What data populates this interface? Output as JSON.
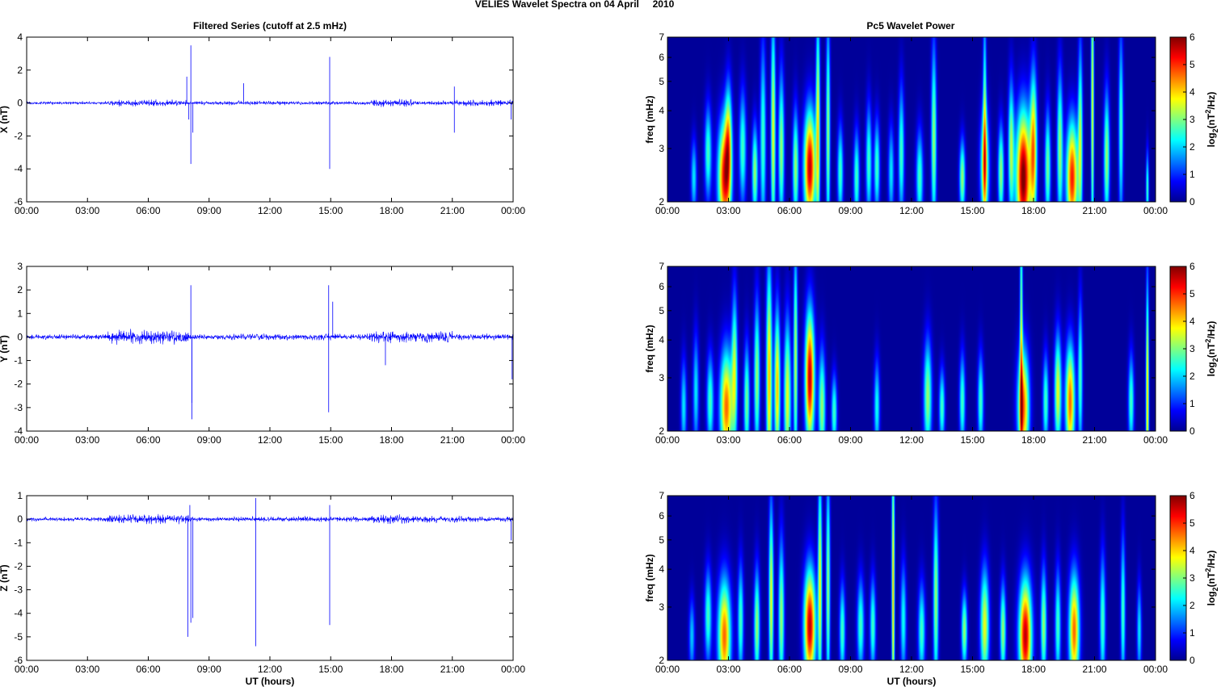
{
  "figure": {
    "title": "VELIES Wavelet Spectra on 04 April     2010",
    "left_title": "Filtered Series (cutoff at 2.5 mHz)",
    "right_title": "Pc5 Wavelet Power",
    "colorbar_label": "log2(nT2/Hz)"
  },
  "chart_data": [
    {
      "type": "line",
      "component": "X",
      "ylabel": "X (nT)",
      "xlabel": "",
      "xlim": [
        0,
        24
      ],
      "ylim": [
        -6,
        4
      ],
      "yticks": [
        -6,
        -4,
        -2,
        0,
        2,
        4
      ],
      "xticks": [
        "00:00",
        "03:00",
        "06:00",
        "09:00",
        "12:00",
        "15:00",
        "18:00",
        "21:00",
        "00:00"
      ],
      "color": "#0000ff",
      "noise_segments": [
        [
          0,
          4,
          0.1
        ],
        [
          4,
          8,
          0.22
        ],
        [
          8,
          10,
          0.12
        ],
        [
          10,
          13,
          0.14
        ],
        [
          13,
          17,
          0.12
        ],
        [
          17,
          19,
          0.25
        ],
        [
          19,
          21,
          0.14
        ],
        [
          21,
          24,
          0.2
        ]
      ],
      "spikes": [
        {
          "t": 7.9,
          "v": 1.6
        },
        {
          "t": 8.0,
          "v": -1.0
        },
        {
          "t": 8.1,
          "v": 3.5
        },
        {
          "t": 8.1,
          "v": -3.7
        },
        {
          "t": 8.2,
          "v": -1.8
        },
        {
          "t": 10.7,
          "v": 1.2
        },
        {
          "t": 14.95,
          "v": 2.8
        },
        {
          "t": 14.95,
          "v": -4.0
        },
        {
          "t": 21.1,
          "v": 1.0
        },
        {
          "t": 21.1,
          "v": -1.8
        },
        {
          "t": 23.9,
          "v": -1.0
        }
      ]
    },
    {
      "type": "line",
      "component": "Y",
      "ylabel": "Y (nT)",
      "xlabel": "",
      "xlim": [
        0,
        24
      ],
      "ylim": [
        -4,
        3
      ],
      "yticks": [
        -4,
        -3,
        -2,
        -1,
        0,
        1,
        2,
        3
      ],
      "xticks": [
        "00:00",
        "03:00",
        "06:00",
        "09:00",
        "12:00",
        "15:00",
        "18:00",
        "21:00",
        "00:00"
      ],
      "color": "#0000ff",
      "noise_segments": [
        [
          0,
          4,
          0.12
        ],
        [
          4,
          8,
          0.35
        ],
        [
          8,
          10,
          0.12
        ],
        [
          10,
          13,
          0.15
        ],
        [
          13,
          17,
          0.15
        ],
        [
          17,
          21,
          0.28
        ],
        [
          21,
          24,
          0.15
        ]
      ],
      "spikes": [
        {
          "t": 8.1,
          "v": 2.2
        },
        {
          "t": 8.15,
          "v": -2.8
        },
        {
          "t": 8.15,
          "v": -3.5
        },
        {
          "t": 14.9,
          "v": 2.2
        },
        {
          "t": 14.9,
          "v": -3.2
        },
        {
          "t": 15.1,
          "v": 1.5
        },
        {
          "t": 17.7,
          "v": -1.2
        },
        {
          "t": 23.95,
          "v": -1.8
        }
      ]
    },
    {
      "type": "line",
      "component": "Z",
      "ylabel": "Z (nT)",
      "xlabel": "UT (hours)",
      "xlim": [
        0,
        24
      ],
      "ylim": [
        -6,
        1
      ],
      "yticks": [
        -6,
        -5,
        -4,
        -3,
        -2,
        -1,
        0,
        1
      ],
      "xticks": [
        "00:00",
        "03:00",
        "06:00",
        "09:00",
        "12:00",
        "15:00",
        "18:00",
        "21:00",
        "00:00"
      ],
      "color": "#0000ff",
      "noise_segments": [
        [
          0,
          4,
          0.1
        ],
        [
          4,
          8,
          0.22
        ],
        [
          8,
          10,
          0.1
        ],
        [
          10,
          13,
          0.12
        ],
        [
          13,
          17,
          0.12
        ],
        [
          17,
          19,
          0.22
        ],
        [
          19,
          22,
          0.16
        ],
        [
          22,
          24,
          0.12
        ]
      ],
      "spikes": [
        {
          "t": 7.95,
          "v": -5.0
        },
        {
          "t": 8.1,
          "v": -4.4
        },
        {
          "t": 8.2,
          "v": -4.2
        },
        {
          "t": 8.05,
          "v": 0.6
        },
        {
          "t": 11.3,
          "v": -5.4
        },
        {
          "t": 11.3,
          "v": 0.9
        },
        {
          "t": 14.95,
          "v": -4.5
        },
        {
          "t": 14.95,
          "v": 0.6
        },
        {
          "t": 23.9,
          "v": -0.9
        }
      ]
    },
    {
      "type": "heatmap",
      "title": "Pc5 Wavelet Power",
      "component": "X",
      "ylabel": "freq (mHz)",
      "xlabel": "",
      "xlim": [
        0,
        24
      ],
      "ylim": [
        2,
        7
      ],
      "yscale": "log",
      "yticks": [
        2,
        3,
        4,
        5,
        6,
        7
      ],
      "xticks": [
        "00:00",
        "03:00",
        "06:00",
        "09:00",
        "12:00",
        "15:00",
        "18:00",
        "21:00",
        "00:00"
      ],
      "colorbar": {
        "label": "log2(nT2/Hz)",
        "range": [
          0,
          6
        ],
        "ticks": [
          0,
          1,
          2,
          3,
          4,
          5,
          6
        ],
        "colormap": "jet"
      },
      "blobs": [
        [
          1.3,
          2.4,
          0.1,
          0.2,
          2.0
        ],
        [
          2.0,
          2.9,
          0.12,
          0.25,
          2.5
        ],
        [
          2.8,
          2.4,
          0.22,
          0.3,
          5.0
        ],
        [
          3.0,
          3.2,
          0.12,
          0.3,
          3.0
        ],
        [
          3.7,
          3.0,
          0.12,
          0.3,
          2.5
        ],
        [
          4.3,
          2.5,
          0.1,
          0.25,
          3.0
        ],
        [
          4.7,
          3.2,
          0.1,
          0.5,
          2.5
        ],
        [
          5.2,
          3.4,
          0.08,
          0.6,
          3.5
        ],
        [
          5.6,
          3.0,
          0.1,
          0.4,
          3.0
        ],
        [
          6.3,
          2.6,
          0.1,
          0.3,
          3.0
        ],
        [
          7.0,
          2.6,
          0.2,
          0.3,
          5.5
        ],
        [
          7.4,
          3.6,
          0.07,
          0.6,
          3.5
        ],
        [
          7.9,
          3.4,
          0.07,
          0.6,
          3.0
        ],
        [
          8.5,
          2.5,
          0.1,
          0.25,
          2.5
        ],
        [
          9.3,
          2.4,
          0.1,
          0.25,
          2.5
        ],
        [
          9.9,
          2.7,
          0.1,
          0.3,
          2.5
        ],
        [
          10.3,
          2.6,
          0.1,
          0.25,
          2.5
        ],
        [
          11.0,
          2.5,
          0.1,
          0.25,
          2.0
        ],
        [
          11.5,
          2.9,
          0.1,
          0.35,
          2.5
        ],
        [
          12.4,
          2.4,
          0.12,
          0.25,
          2.5
        ],
        [
          13.1,
          3.2,
          0.09,
          0.5,
          3.0
        ],
        [
          14.5,
          2.4,
          0.1,
          0.2,
          3.0
        ],
        [
          15.6,
          2.6,
          0.15,
          0.3,
          3.5
        ],
        [
          15.6,
          3.8,
          0.06,
          0.6,
          2.5
        ],
        [
          16.4,
          2.5,
          0.1,
          0.25,
          3.0
        ],
        [
          16.9,
          3.0,
          0.1,
          0.35,
          3.0
        ],
        [
          17.5,
          2.4,
          0.25,
          0.35,
          6.0
        ],
        [
          18.0,
          3.0,
          0.12,
          0.4,
          4.0
        ],
        [
          18.7,
          2.6,
          0.1,
          0.3,
          2.8
        ],
        [
          19.3,
          3.0,
          0.1,
          0.4,
          3.0
        ],
        [
          19.9,
          2.4,
          0.2,
          0.3,
          5.0
        ],
        [
          20.3,
          3.2,
          0.08,
          0.5,
          3.0
        ],
        [
          20.9,
          4.2,
          0.05,
          0.8,
          3.5
        ],
        [
          21.6,
          2.8,
          0.1,
          0.35,
          3.0
        ],
        [
          22.3,
          3.5,
          0.08,
          0.5,
          2.5
        ],
        [
          23.6,
          2.2,
          0.05,
          0.2,
          2.5
        ]
      ]
    },
    {
      "type": "heatmap",
      "component": "Y",
      "ylabel": "freq (mHz)",
      "xlabel": "",
      "xlim": [
        0,
        24
      ],
      "ylim": [
        2,
        7
      ],
      "yscale": "log",
      "yticks": [
        2,
        3,
        4,
        5,
        6,
        7
      ],
      "xticks": [
        "00:00",
        "03:00",
        "06:00",
        "09:00",
        "12:00",
        "15:00",
        "18:00",
        "21:00",
        "00:00"
      ],
      "colorbar": {
        "label": "log2(nT2/Hz)",
        "range": [
          0,
          6
        ],
        "ticks": [
          0,
          1,
          2,
          3,
          4,
          5,
          6
        ],
        "colormap": "jet"
      },
      "blobs": [
        [
          0.8,
          2.4,
          0.1,
          0.25,
          2.0
        ],
        [
          1.4,
          2.7,
          0.1,
          0.3,
          2.0
        ],
        [
          2.1,
          2.5,
          0.12,
          0.25,
          2.5
        ],
        [
          2.9,
          2.4,
          0.22,
          0.3,
          4.5
        ],
        [
          3.3,
          3.2,
          0.1,
          0.4,
          3.0
        ],
        [
          3.9,
          2.5,
          0.1,
          0.3,
          2.8
        ],
        [
          4.4,
          3.0,
          0.1,
          0.4,
          3.0
        ],
        [
          5.0,
          3.0,
          0.1,
          0.6,
          4.0
        ],
        [
          5.4,
          2.8,
          0.1,
          0.4,
          4.0
        ],
        [
          5.9,
          2.6,
          0.12,
          0.4,
          3.5
        ],
        [
          6.3,
          3.4,
          0.07,
          0.6,
          3.2
        ],
        [
          7.0,
          3.0,
          0.16,
          0.35,
          5.5
        ],
        [
          7.6,
          2.4,
          0.12,
          0.3,
          3.0
        ],
        [
          8.2,
          2.3,
          0.1,
          0.2,
          2.5
        ],
        [
          10.3,
          2.4,
          0.1,
          0.25,
          2.2
        ],
        [
          12.8,
          2.6,
          0.14,
          0.3,
          3.0
        ],
        [
          13.5,
          2.4,
          0.1,
          0.2,
          2.5
        ],
        [
          14.5,
          2.5,
          0.1,
          0.25,
          2.5
        ],
        [
          15.4,
          2.5,
          0.1,
          0.25,
          2.5
        ],
        [
          17.5,
          2.4,
          0.2,
          0.3,
          4.5
        ],
        [
          17.4,
          4.0,
          0.05,
          0.8,
          3.0
        ],
        [
          18.6,
          2.5,
          0.1,
          0.25,
          2.5
        ],
        [
          19.2,
          2.7,
          0.12,
          0.3,
          3.5
        ],
        [
          19.8,
          2.5,
          0.16,
          0.3,
          4.5
        ],
        [
          20.3,
          3.0,
          0.08,
          0.4,
          2.5
        ],
        [
          22.8,
          2.5,
          0.1,
          0.25,
          2.5
        ],
        [
          23.6,
          2.6,
          0.05,
          0.6,
          4.0
        ]
      ]
    },
    {
      "type": "heatmap",
      "component": "Z",
      "ylabel": "freq (mHz)",
      "xlabel": "UT (hours)",
      "xlim": [
        0,
        24
      ],
      "ylim": [
        2,
        7
      ],
      "yscale": "log",
      "yticks": [
        2,
        3,
        4,
        5,
        6,
        7
      ],
      "xticks": [
        "00:00",
        "03:00",
        "06:00",
        "09:00",
        "12:00",
        "15:00",
        "18:00",
        "21:00",
        "00:00"
      ],
      "colorbar": {
        "label": "log2(nT2/Hz)",
        "range": [
          0,
          6
        ],
        "ticks": [
          0,
          1,
          2,
          3,
          4,
          5,
          6
        ],
        "colormap": "jet"
      },
      "blobs": [
        [
          1.2,
          2.4,
          0.1,
          0.2,
          1.8
        ],
        [
          2.0,
          2.8,
          0.12,
          0.25,
          2.5
        ],
        [
          2.8,
          2.4,
          0.22,
          0.3,
          4.5
        ],
        [
          3.6,
          2.7,
          0.1,
          0.3,
          2.5
        ],
        [
          4.4,
          2.6,
          0.1,
          0.3,
          3.0
        ],
        [
          5.1,
          3.2,
          0.08,
          0.5,
          3.5
        ],
        [
          5.6,
          2.8,
          0.1,
          0.4,
          3.0
        ],
        [
          7.0,
          2.6,
          0.2,
          0.3,
          5.5
        ],
        [
          7.5,
          3.6,
          0.07,
          0.6,
          3.5
        ],
        [
          7.9,
          3.5,
          0.07,
          0.6,
          3.0
        ],
        [
          8.6,
          2.5,
          0.1,
          0.25,
          2.5
        ],
        [
          9.5,
          2.6,
          0.12,
          0.25,
          2.5
        ],
        [
          10.1,
          2.6,
          0.1,
          0.25,
          2.5
        ],
        [
          11.1,
          3.4,
          0.05,
          0.8,
          4.0
        ],
        [
          11.6,
          2.7,
          0.1,
          0.3,
          2.2
        ],
        [
          12.5,
          2.5,
          0.12,
          0.25,
          2.5
        ],
        [
          13.2,
          3.2,
          0.09,
          0.5,
          3.0
        ],
        [
          14.6,
          2.5,
          0.1,
          0.2,
          3.0
        ],
        [
          15.6,
          2.6,
          0.15,
          0.3,
          3.5
        ],
        [
          16.5,
          2.5,
          0.1,
          0.25,
          3.0
        ],
        [
          17.6,
          2.4,
          0.22,
          0.3,
          5.5
        ],
        [
          18.5,
          2.6,
          0.1,
          0.3,
          3.0
        ],
        [
          19.2,
          2.6,
          0.1,
          0.3,
          2.5
        ],
        [
          20.0,
          2.5,
          0.18,
          0.3,
          4.5
        ],
        [
          21.4,
          2.7,
          0.1,
          0.35,
          2.5
        ],
        [
          22.4,
          2.9,
          0.08,
          0.4,
          2.5
        ],
        [
          23.2,
          2.5,
          0.08,
          0.25,
          2.0
        ]
      ]
    }
  ]
}
